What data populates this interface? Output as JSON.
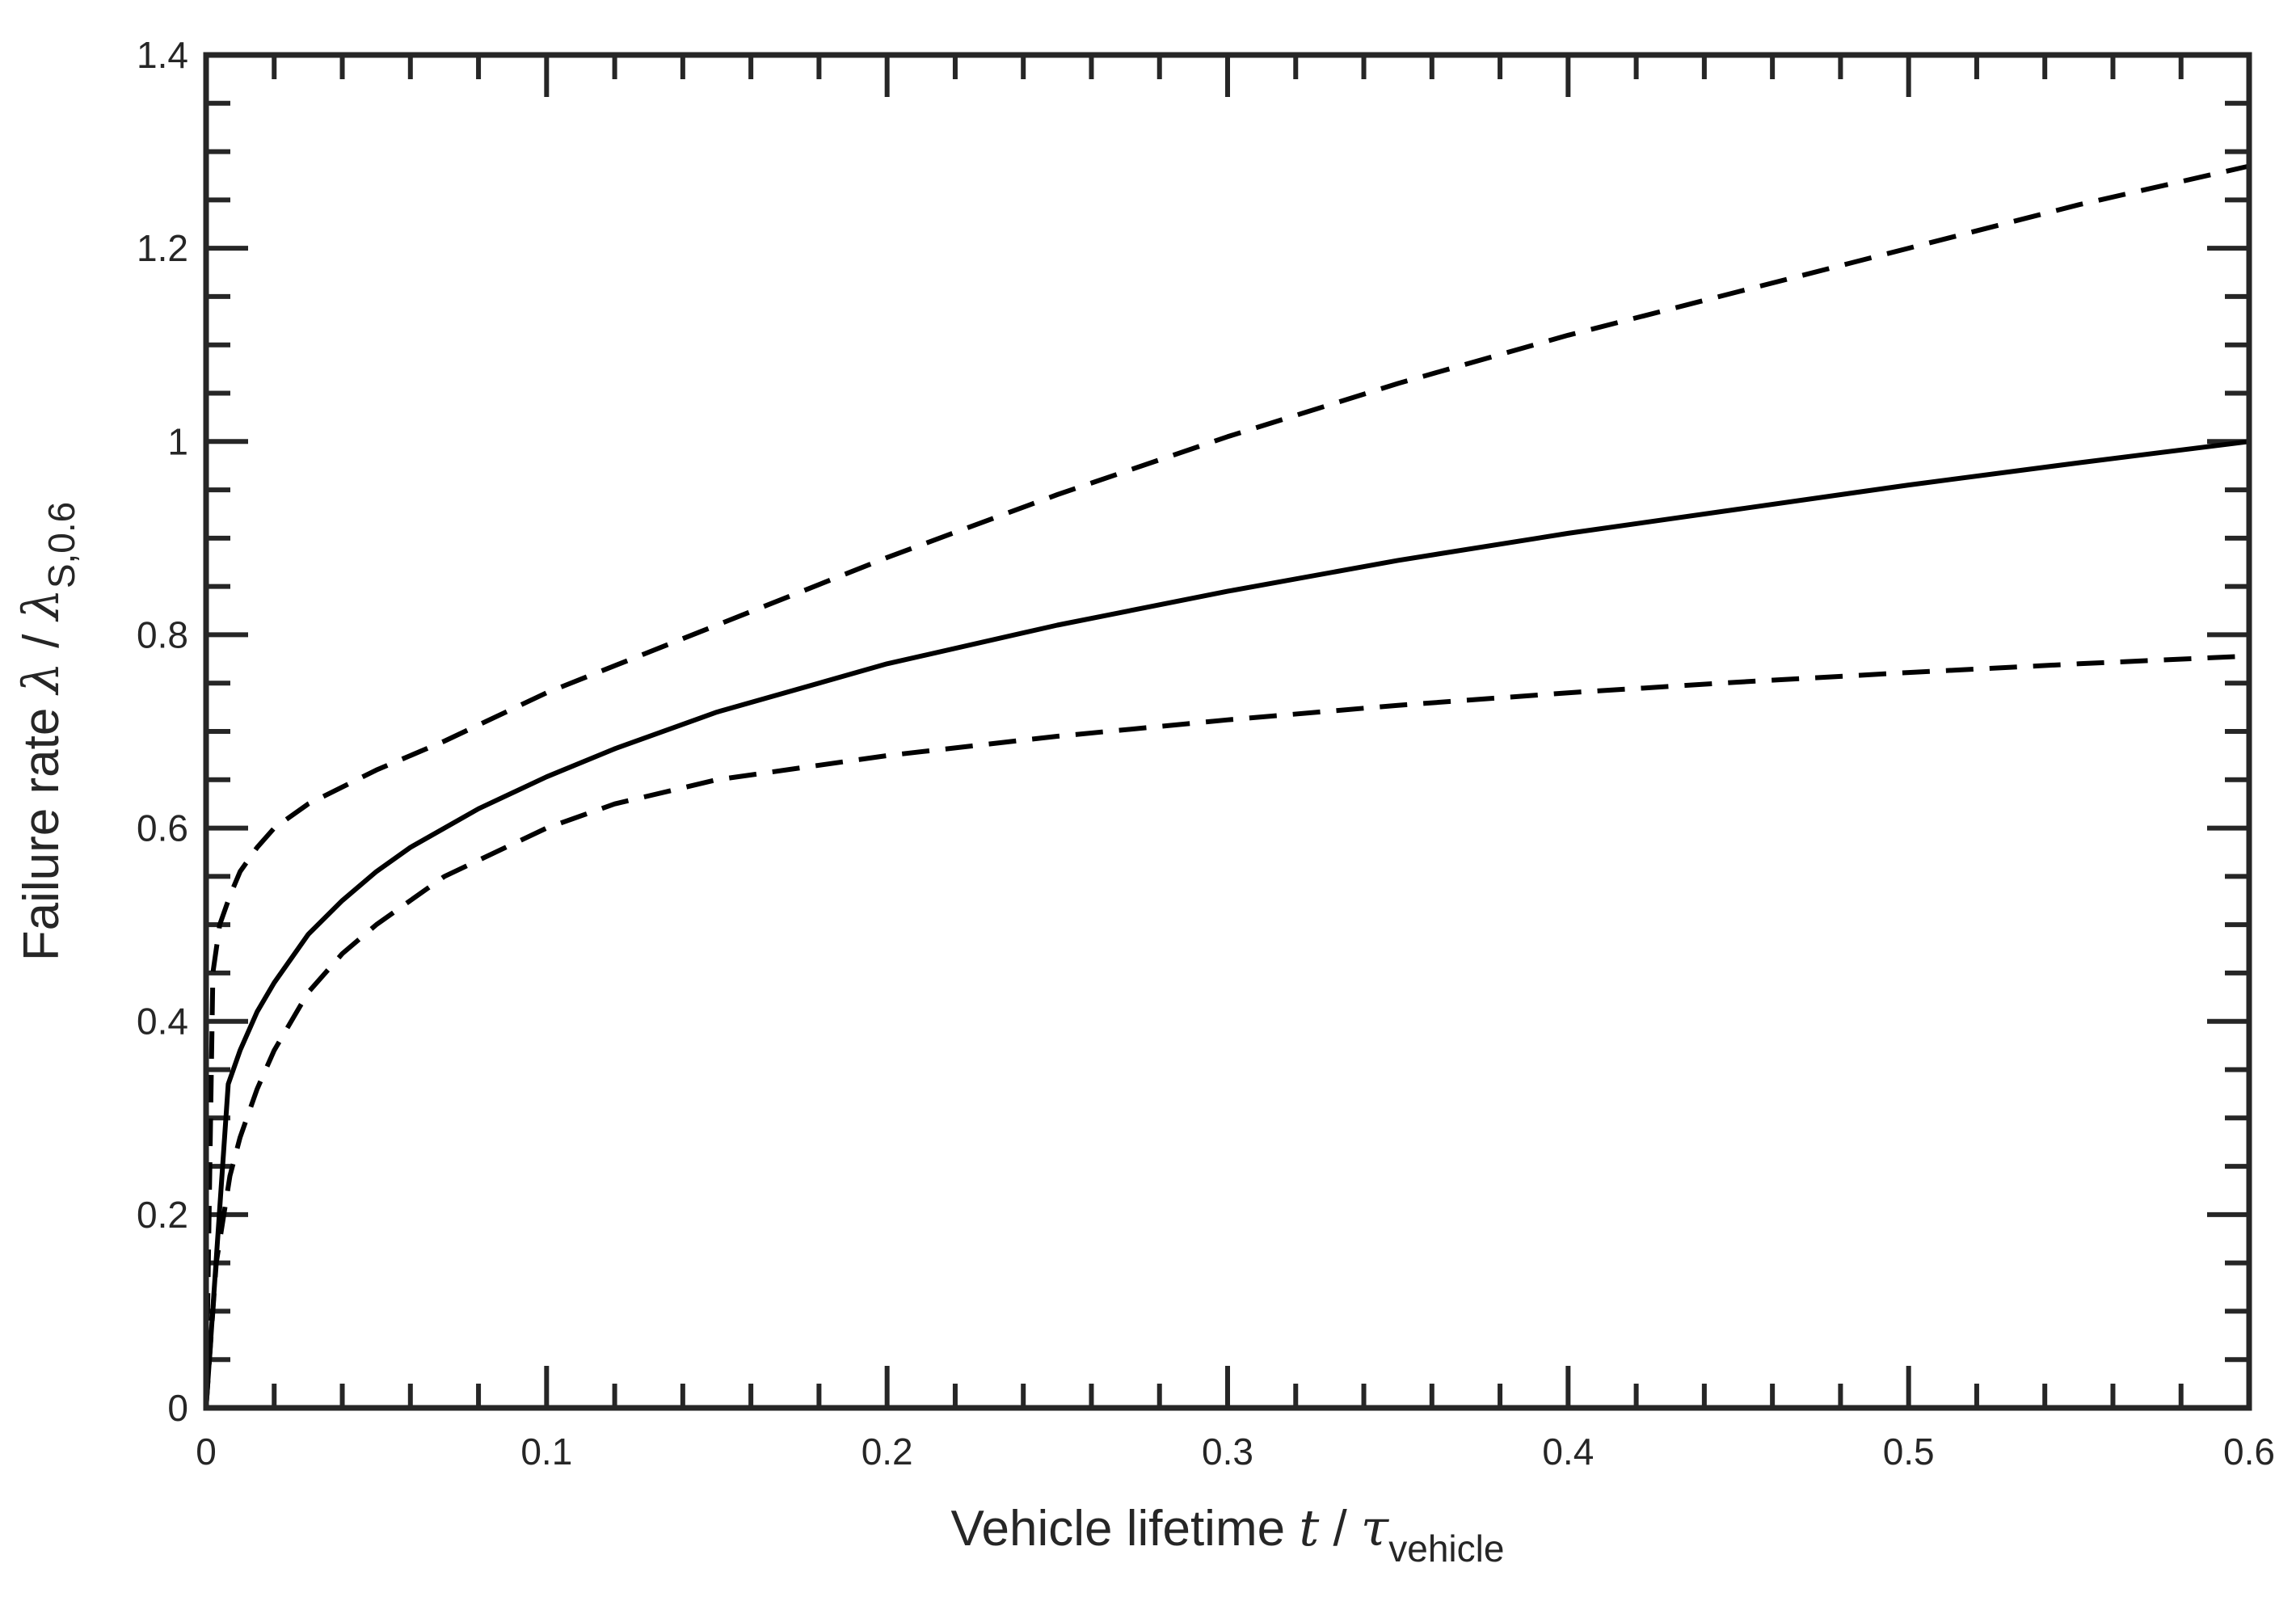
{
  "chart_data": {
    "type": "line",
    "xlim": [
      0,
      0.6
    ],
    "ylim": [
      0,
      1.4
    ],
    "x_ticks": [
      0,
      0.1,
      0.2,
      0.3,
      0.4,
      0.5,
      0.6
    ],
    "x_tick_labels": [
      "0",
      "0.1",
      "0.2",
      "0.3",
      "0.4",
      "0.5",
      "0.6"
    ],
    "y_ticks": [
      0,
      0.2,
      0.4,
      0.6,
      0.8,
      1.0,
      1.2,
      1.4
    ],
    "y_tick_labels": [
      "0",
      "0.2",
      "0.4",
      "0.6",
      "0.8",
      "1",
      "1.2",
      "1.4"
    ],
    "xlabel": {
      "text": "Vehicle lifetime ",
      "var": "t",
      "sep": " / ",
      "sym": "τ",
      "sub": "vehicle"
    },
    "ylabel": {
      "text": "Failure rate ",
      "var": "λ",
      "sep": " / ",
      "sym": "λ",
      "sub": "S,0.6"
    },
    "grid": false,
    "legend": "none",
    "color": "#000000",
    "series": [
      {
        "style": "solid",
        "x": [
          0,
          0.0065,
          0.01,
          0.015,
          0.02,
          0.03,
          0.04,
          0.05,
          0.06,
          0.07,
          0.08,
          0.1,
          0.12,
          0.15,
          0.2,
          0.25,
          0.3,
          0.35,
          0.4,
          0.45,
          0.5,
          0.55,
          0.6
        ],
        "y": [
          0,
          0.335,
          0.37,
          0.41,
          0.44,
          0.49,
          0.525,
          0.555,
          0.58,
          0.6,
          0.62,
          0.653,
          0.682,
          0.72,
          0.77,
          0.81,
          0.845,
          0.877,
          0.905,
          0.93,
          0.955,
          0.978,
          1.0
        ]
      },
      {
        "style": "dashed",
        "x": [
          0,
          0.002,
          0.004,
          0.007,
          0.01,
          0.015,
          0.02,
          0.03,
          0.05,
          0.07,
          0.1,
          0.15,
          0.2,
          0.25,
          0.3,
          0.35,
          0.4,
          0.45,
          0.5,
          0.55,
          0.6
        ],
        "y": [
          0,
          0.45,
          0.5,
          0.53,
          0.555,
          0.58,
          0.6,
          0.625,
          0.66,
          0.69,
          0.74,
          0.81,
          0.88,
          0.945,
          1.005,
          1.06,
          1.11,
          1.155,
          1.2,
          1.245,
          1.285
        ]
      },
      {
        "style": "dashed",
        "x": [
          0,
          0.003,
          0.007,
          0.01,
          0.015,
          0.02,
          0.03,
          0.04,
          0.05,
          0.07,
          0.1,
          0.12,
          0.15,
          0.2,
          0.25,
          0.3,
          0.35,
          0.4,
          0.45,
          0.5,
          0.55,
          0.6
        ],
        "y": [
          0,
          0.15,
          0.24,
          0.28,
          0.33,
          0.37,
          0.43,
          0.47,
          0.5,
          0.55,
          0.6,
          0.625,
          0.65,
          0.675,
          0.695,
          0.712,
          0.727,
          0.74,
          0.751,
          0.761,
          0.77,
          0.778
        ]
      }
    ]
  }
}
